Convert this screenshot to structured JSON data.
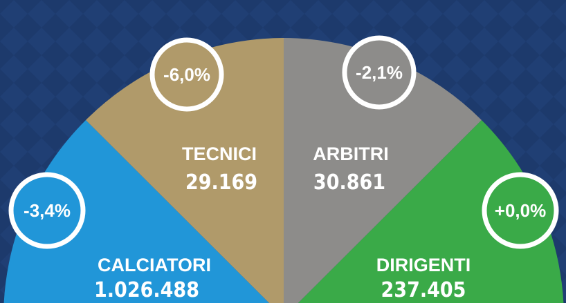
{
  "segments": [
    {
      "label": "CALCIATORI",
      "value": "1.026.488",
      "change": "-3,4%"
    },
    {
      "label": "TECNICI",
      "value": "29.169",
      "change": "-6,0%"
    },
    {
      "label": "ARBITRI",
      "value": "30.861",
      "change": "-2,1%"
    },
    {
      "label": "DIRIGENTI",
      "value": "237.405",
      "change": "+0,0%"
    }
  ]
}
